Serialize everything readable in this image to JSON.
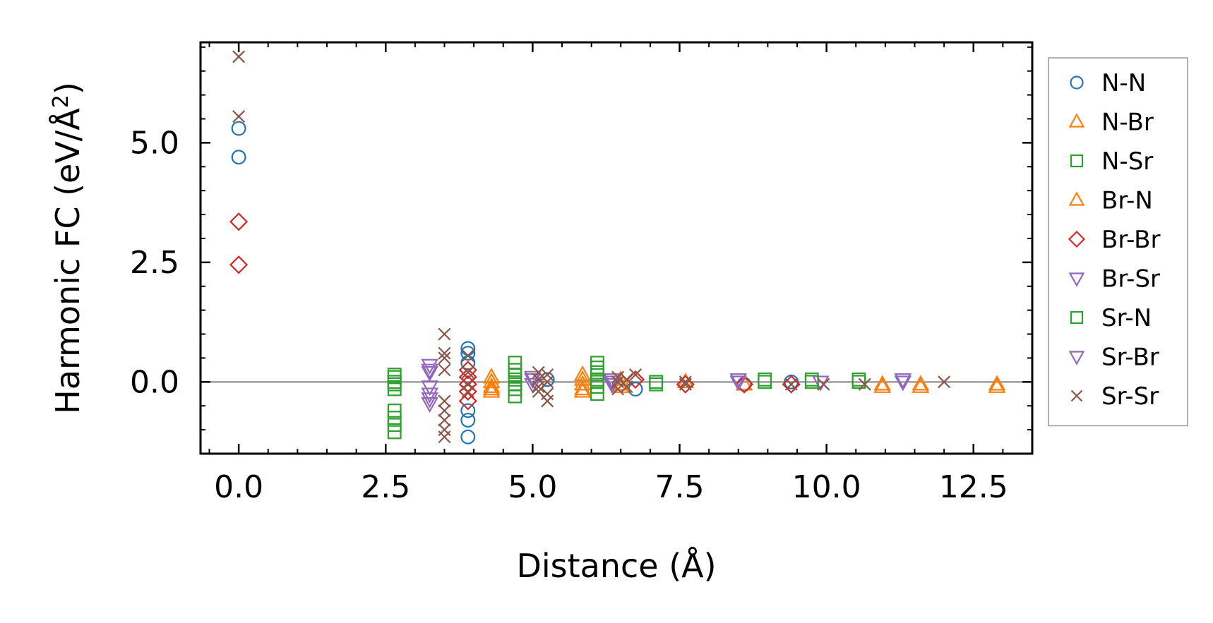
{
  "chart_data": {
    "type": "scatter",
    "title": "",
    "xlabel": "Distance (Å)",
    "ylabel_main": "Harmonic FC (eV/Å",
    "ylabel_sup": "2",
    "ylabel_close": ")",
    "xlim": [
      -0.65,
      13.5
    ],
    "ylim": [
      -1.5,
      7.1
    ],
    "x_ticks": [
      0.0,
      2.5,
      5.0,
      7.5,
      10.0,
      12.5
    ],
    "x_tick_labels": [
      "0.0",
      "2.5",
      "5.0",
      "7.5",
      "10.0",
      "12.5"
    ],
    "y_ticks": [
      0.0,
      2.5,
      5.0
    ],
    "y_tick_labels": [
      "0.0",
      "2.5",
      "5.0"
    ],
    "zero_line": true,
    "grid": false,
    "legend_position": "outside-right",
    "series": [
      {
        "name": "N-N",
        "marker": "circle",
        "color": "#1f77b4",
        "points": [
          [
            0,
            5.3
          ],
          [
            0,
            4.7
          ],
          [
            3.9,
            0.7
          ],
          [
            3.9,
            0.6
          ],
          [
            3.9,
            0.4
          ],
          [
            3.9,
            -0.6
          ],
          [
            3.9,
            -0.8
          ],
          [
            3.9,
            -1.15
          ],
          [
            5.25,
            0.05
          ],
          [
            6.75,
            -0.15
          ],
          [
            8.6,
            -0.05
          ],
          [
            9.4,
            0.0
          ]
        ]
      },
      {
        "name": "N-Br",
        "marker": "triangle-up",
        "color": "#ff7f0e",
        "points": [
          [
            4.3,
            0.1
          ],
          [
            4.3,
            -0.1
          ],
          [
            4.3,
            -0.2
          ],
          [
            5.85,
            0.15
          ],
          [
            5.85,
            -0.05
          ],
          [
            5.85,
            -0.2
          ],
          [
            6.5,
            0.05
          ],
          [
            6.5,
            -0.1
          ],
          [
            7.6,
            0.0
          ],
          [
            8.6,
            -0.05
          ],
          [
            10.95,
            -0.05
          ],
          [
            11.6,
            -0.05
          ],
          [
            12.9,
            -0.05
          ]
        ]
      },
      {
        "name": "N-Sr",
        "marker": "square",
        "color": "#2ca02c",
        "points": [
          [
            2.65,
            0.15
          ],
          [
            2.65,
            0.0
          ],
          [
            2.65,
            -0.15
          ],
          [
            2.65,
            -0.6
          ],
          [
            2.65,
            -0.75
          ],
          [
            2.65,
            -0.9
          ],
          [
            2.65,
            -1.05
          ],
          [
            4.7,
            0.4
          ],
          [
            4.7,
            0.25
          ],
          [
            4.7,
            0.05
          ],
          [
            4.7,
            -0.15
          ],
          [
            4.7,
            -0.3
          ],
          [
            6.1,
            0.4
          ],
          [
            6.1,
            0.2
          ],
          [
            6.1,
            0.05
          ],
          [
            6.1,
            -0.1
          ],
          [
            6.1,
            -0.25
          ],
          [
            7.1,
            0.0
          ],
          [
            8.95,
            0.0
          ],
          [
            9.75,
            0.0
          ],
          [
            10.55,
            0.0
          ]
        ]
      },
      {
        "name": "Br-N",
        "marker": "triangle-up",
        "color": "#ff7f0e",
        "points": [
          [
            4.3,
            0.0
          ],
          [
            4.3,
            -0.15
          ],
          [
            5.85,
            0.05
          ],
          [
            5.85,
            -0.15
          ],
          [
            6.5,
            -0.05
          ],
          [
            10.95,
            -0.1
          ],
          [
            11.6,
            -0.1
          ],
          [
            12.9,
            -0.1
          ]
        ]
      },
      {
        "name": "Br-Br",
        "marker": "diamond",
        "color": "#d62728",
        "points": [
          [
            0,
            3.35
          ],
          [
            0,
            2.45
          ],
          [
            3.9,
            0.25
          ],
          [
            3.9,
            0.1
          ],
          [
            3.9,
            -0.05
          ],
          [
            3.9,
            -0.2
          ],
          [
            3.9,
            -0.4
          ],
          [
            6.75,
            0.05
          ],
          [
            7.6,
            -0.05
          ],
          [
            8.6,
            -0.05
          ],
          [
            9.4,
            -0.05
          ]
        ]
      },
      {
        "name": "Br-Sr",
        "marker": "triangle-down",
        "color": "#9467bd",
        "points": [
          [
            3.25,
            0.35
          ],
          [
            3.25,
            0.2
          ],
          [
            3.25,
            -0.1
          ],
          [
            3.25,
            -0.35
          ],
          [
            3.25,
            -0.45
          ],
          [
            5.0,
            0.1
          ],
          [
            5.0,
            -0.05
          ],
          [
            6.35,
            0.05
          ],
          [
            6.35,
            -0.05
          ],
          [
            8.5,
            0.0
          ],
          [
            9.9,
            0.0
          ],
          [
            11.3,
            0.0
          ]
        ]
      },
      {
        "name": "Sr-N",
        "marker": "square",
        "color": "#2ca02c",
        "points": [
          [
            2.65,
            0.1
          ],
          [
            2.65,
            -0.05
          ],
          [
            4.7,
            0.15
          ],
          [
            4.7,
            -0.05
          ],
          [
            6.1,
            0.3
          ],
          [
            6.1,
            0.0
          ],
          [
            7.1,
            -0.05
          ],
          [
            8.95,
            0.05
          ],
          [
            9.75,
            0.05
          ],
          [
            10.55,
            0.05
          ]
        ]
      },
      {
        "name": "Sr-Br",
        "marker": "triangle-down",
        "color": "#9467bd",
        "points": [
          [
            3.25,
            0.25
          ],
          [
            3.25,
            -0.25
          ],
          [
            5.0,
            0.05
          ],
          [
            6.35,
            0.0
          ],
          [
            8.5,
            0.05
          ],
          [
            11.3,
            0.05
          ]
        ]
      },
      {
        "name": "Sr-Sr",
        "marker": "x",
        "color": "#8c564b",
        "points": [
          [
            0,
            6.8
          ],
          [
            0,
            5.55
          ],
          [
            3.5,
            1.0
          ],
          [
            3.5,
            0.6
          ],
          [
            3.5,
            0.5
          ],
          [
            3.5,
            0.25
          ],
          [
            3.5,
            -0.4
          ],
          [
            3.5,
            -0.6
          ],
          [
            3.5,
            -0.8
          ],
          [
            3.5,
            -1.0
          ],
          [
            3.5,
            -1.15
          ],
          [
            3.9,
            0.55
          ],
          [
            3.9,
            0.2
          ],
          [
            3.9,
            -0.05
          ],
          [
            3.9,
            -0.2
          ],
          [
            5.1,
            0.2
          ],
          [
            5.1,
            0.05
          ],
          [
            5.1,
            -0.1
          ],
          [
            5.1,
            -0.2
          ],
          [
            5.25,
            0.15
          ],
          [
            5.25,
            0.0
          ],
          [
            5.25,
            -0.25
          ],
          [
            5.25,
            -0.4
          ],
          [
            6.45,
            0.1
          ],
          [
            6.45,
            0.0
          ],
          [
            6.45,
            -0.15
          ],
          [
            6.6,
            0.05
          ],
          [
            6.6,
            -0.1
          ],
          [
            6.75,
            0.15
          ],
          [
            7.6,
            0.0
          ],
          [
            7.6,
            -0.05
          ],
          [
            9.4,
            -0.05
          ],
          [
            9.95,
            -0.05
          ],
          [
            10.65,
            -0.05
          ],
          [
            12.0,
            0.0
          ]
        ]
      }
    ]
  }
}
